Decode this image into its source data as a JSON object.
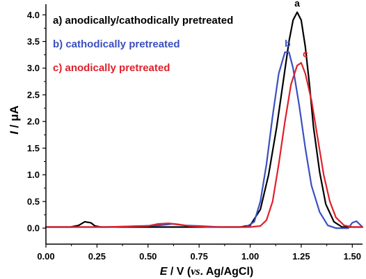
{
  "chart_data": {
    "type": "line",
    "xlabel_main": "E",
    "xlabel_unit": " / V (",
    "xlabel_vs": "vs",
    "xlabel_ref": ". Ag/AgCl)",
    "ylabel_main": "I",
    "ylabel_unit": " / μA",
    "xlim": [
      0.0,
      1.55
    ],
    "ylim": [
      -0.3,
      4.2
    ],
    "xticks": [
      "0.00",
      "0.25",
      "0.50",
      "0.75",
      "1.00",
      "1.25",
      "1.50"
    ],
    "yticks": [
      "0.0",
      "0.5",
      "1.0",
      "1.5",
      "2.0",
      "2.5",
      "3.0",
      "3.5",
      "4.0"
    ],
    "grid": false,
    "legend_position": "top-left",
    "series": [
      {
        "name": "a) anodically/cathodically pretreated",
        "peak_label": "a",
        "color": "#000000",
        "points": [
          [
            0.0,
            0.02
          ],
          [
            0.12,
            0.02
          ],
          [
            0.16,
            0.05
          ],
          [
            0.19,
            0.12
          ],
          [
            0.22,
            0.1
          ],
          [
            0.24,
            0.04
          ],
          [
            0.27,
            0.02
          ],
          [
            0.5,
            0.02
          ],
          [
            0.75,
            0.02
          ],
          [
            0.95,
            0.02
          ],
          [
            1.0,
            0.05
          ],
          [
            1.05,
            0.35
          ],
          [
            1.09,
            1.0
          ],
          [
            1.13,
            1.9
          ],
          [
            1.16,
            2.7
          ],
          [
            1.19,
            3.5
          ],
          [
            1.21,
            3.9
          ],
          [
            1.23,
            4.05
          ],
          [
            1.25,
            3.9
          ],
          [
            1.27,
            3.4
          ],
          [
            1.29,
            2.7
          ],
          [
            1.31,
            1.9
          ],
          [
            1.34,
            1.05
          ],
          [
            1.37,
            0.45
          ],
          [
            1.41,
            0.12
          ],
          [
            1.45,
            0.02
          ],
          [
            1.55,
            0.02
          ]
        ]
      },
      {
        "name": "b) cathodically pretreated",
        "peak_label": "b",
        "color": "#3a4fc0",
        "points": [
          [
            0.0,
            0.02
          ],
          [
            0.3,
            0.02
          ],
          [
            0.55,
            0.05
          ],
          [
            0.62,
            0.08
          ],
          [
            0.68,
            0.05
          ],
          [
            0.75,
            0.04
          ],
          [
            0.85,
            0.02
          ],
          [
            0.98,
            0.02
          ],
          [
            1.02,
            0.12
          ],
          [
            1.05,
            0.5
          ],
          [
            1.08,
            1.2
          ],
          [
            1.11,
            2.1
          ],
          [
            1.14,
            2.9
          ],
          [
            1.17,
            3.3
          ],
          [
            1.19,
            3.3
          ],
          [
            1.21,
            3.0
          ],
          [
            1.24,
            2.3
          ],
          [
            1.27,
            1.5
          ],
          [
            1.3,
            0.8
          ],
          [
            1.34,
            0.3
          ],
          [
            1.38,
            0.05
          ],
          [
            1.42,
            0.0
          ],
          [
            1.48,
            0.0
          ],
          [
            1.5,
            0.1
          ],
          [
            1.52,
            0.13
          ],
          [
            1.55,
            0.02
          ]
        ]
      },
      {
        "name": "c) anodically pretreated",
        "peak_label": "c",
        "color": "#e0202a",
        "points": [
          [
            0.0,
            0.02
          ],
          [
            0.3,
            0.02
          ],
          [
            0.5,
            0.04
          ],
          [
            0.55,
            0.08
          ],
          [
            0.6,
            0.09
          ],
          [
            0.65,
            0.07
          ],
          [
            0.7,
            0.04
          ],
          [
            0.8,
            0.02
          ],
          [
            1.0,
            0.02
          ],
          [
            1.05,
            0.04
          ],
          [
            1.08,
            0.15
          ],
          [
            1.11,
            0.5
          ],
          [
            1.14,
            1.2
          ],
          [
            1.17,
            2.0
          ],
          [
            1.2,
            2.7
          ],
          [
            1.23,
            3.05
          ],
          [
            1.25,
            3.1
          ],
          [
            1.27,
            2.9
          ],
          [
            1.3,
            2.4
          ],
          [
            1.33,
            1.7
          ],
          [
            1.36,
            1.0
          ],
          [
            1.39,
            0.5
          ],
          [
            1.42,
            0.2
          ],
          [
            1.46,
            0.05
          ],
          [
            1.5,
            0.02
          ],
          [
            1.55,
            0.02
          ]
        ]
      }
    ]
  }
}
